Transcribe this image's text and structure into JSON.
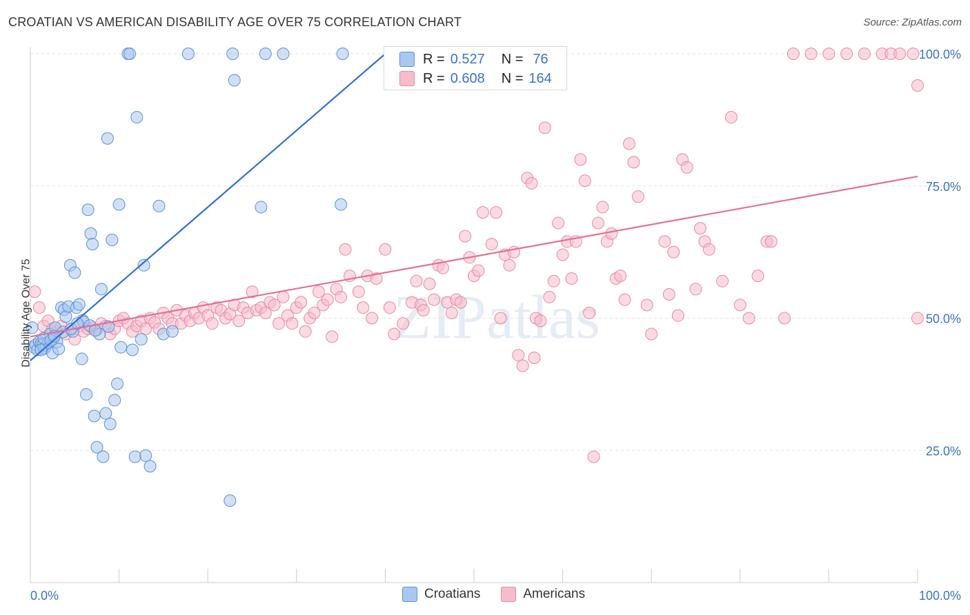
{
  "title": "CROATIAN VS AMERICAN DISABILITY AGE OVER 75 CORRELATION CHART",
  "source": "Source: ZipAtlas.com",
  "watermark": "ZIPatlas",
  "legend": {
    "r_label": "R =",
    "n_label": "N =",
    "rows": [
      {
        "r": "0.527",
        "n": "76",
        "color": "#a9c8ef",
        "border": "#5b8fd6"
      },
      {
        "r": "0.608",
        "n": "164",
        "color": "#f7bccb",
        "border": "#e58aa3"
      }
    ]
  },
  "bottom_legend": [
    {
      "label": "Croatians",
      "color": "#a9c8ef",
      "border": "#5b8fd6"
    },
    {
      "label": "Americans",
      "color": "#f7bccb",
      "border": "#e58aa3"
    }
  ],
  "chart_data": {
    "type": "scatter",
    "title": "CROATIAN VS AMERICAN DISABILITY AGE OVER 75 CORRELATION CHART",
    "xlabel": "",
    "ylabel": "Disability Age Over 75",
    "xlim": [
      0,
      100
    ],
    "ylim": [
      0,
      100
    ],
    "x_tick_labels": [
      "0.0%",
      "100.0%"
    ],
    "y_tick_labels": [
      "25.0%",
      "50.0%",
      "75.0%",
      "100.0%"
    ],
    "y_tick_values": [
      25,
      50,
      75,
      100
    ],
    "series": [
      {
        "name": "Croatians",
        "color": "#a9c8ef",
        "stroke": "#5b8fd6",
        "line_color": "#2f6fd0",
        "trend": {
          "x0": 0,
          "y0": 42.0,
          "x1": 40,
          "y1": 100
        },
        "points": [
          [
            0.2,
            48.2
          ],
          [
            0.4,
            44.5
          ],
          [
            0.6,
            45.0
          ],
          [
            0.8,
            44.0
          ],
          [
            1.0,
            45.5
          ],
          [
            1.2,
            45.2
          ],
          [
            1.4,
            45.0
          ],
          [
            1.6,
            44.3
          ],
          [
            1.8,
            44.8
          ],
          [
            2.0,
            45.4
          ],
          [
            2.2,
            47.0
          ],
          [
            2.5,
            43.4
          ],
          [
            2.6,
            46.0
          ],
          [
            2.8,
            48.2
          ],
          [
            3.0,
            45.5
          ],
          [
            3.2,
            44.2
          ],
          [
            3.5,
            52.0
          ],
          [
            3.8,
            51.6
          ],
          [
            4.0,
            50.3
          ],
          [
            4.3,
            52.2
          ],
          [
            4.5,
            60.0
          ],
          [
            4.8,
            47.5
          ],
          [
            5.0,
            58.6
          ],
          [
            5.2,
            52.0
          ],
          [
            5.5,
            52.6
          ],
          [
            5.8,
            42.3
          ],
          [
            5.9,
            49.6
          ],
          [
            6.0,
            49.3
          ],
          [
            6.3,
            35.6
          ],
          [
            6.5,
            70.5
          ],
          [
            6.8,
            66.0
          ],
          [
            7.0,
            64.0
          ],
          [
            7.2,
            31.5
          ],
          [
            7.5,
            25.6
          ],
          [
            7.8,
            47.0
          ],
          [
            8.0,
            55.5
          ],
          [
            8.2,
            23.8
          ],
          [
            8.5,
            32.0
          ],
          [
            8.7,
            84.0
          ],
          [
            9.0,
            30.0
          ],
          [
            9.2,
            64.8
          ],
          [
            9.5,
            34.5
          ],
          [
            9.8,
            37.6
          ],
          [
            10.0,
            71.5
          ],
          [
            10.2,
            44.5
          ],
          [
            11.0,
            100
          ],
          [
            11.2,
            100
          ],
          [
            11.5,
            44.0
          ],
          [
            11.8,
            23.8
          ],
          [
            12.0,
            88.0
          ],
          [
            12.5,
            46.0
          ],
          [
            12.8,
            60.0
          ],
          [
            13.0,
            24.0
          ],
          [
            13.5,
            22.0
          ],
          [
            14.5,
            71.2
          ],
          [
            15.0,
            47.0
          ],
          [
            16.0,
            47.5
          ],
          [
            17.8,
            100
          ],
          [
            22.5,
            15.5
          ],
          [
            23.0,
            95.0
          ],
          [
            22.8,
            100
          ],
          [
            26.0,
            71.0
          ],
          [
            26.5,
            100
          ],
          [
            28.5,
            100
          ],
          [
            35.0,
            71.5
          ],
          [
            35.2,
            100
          ],
          [
            1.5,
            46.2
          ],
          [
            2.3,
            45.8
          ],
          [
            3.7,
            47.4
          ],
          [
            4.6,
            48.0
          ],
          [
            5.3,
            49.0
          ],
          [
            6.7,
            48.6
          ],
          [
            7.3,
            47.7
          ],
          [
            8.8,
            48.4
          ],
          [
            1.2,
            44.0
          ],
          [
            2.7,
            46.6
          ]
        ]
      },
      {
        "name": "Americans",
        "color": "#f7bccb",
        "stroke": "#e58aa3",
        "line_color": "#e26f97",
        "trend": {
          "x0": 0,
          "y0": 46.5,
          "x1": 100,
          "y1": 76.8
        },
        "points": [
          [
            0.5,
            55.0
          ],
          [
            1.0,
            52.0
          ],
          [
            1.5,
            48.5
          ],
          [
            2.0,
            49.5
          ],
          [
            2.5,
            48.0
          ],
          [
            3.0,
            47.5
          ],
          [
            3.5,
            48.5
          ],
          [
            4.0,
            47.0
          ],
          [
            4.5,
            47.8
          ],
          [
            5.0,
            46.0
          ],
          [
            5.5,
            48.5
          ],
          [
            6.0,
            47.5
          ],
          [
            6.5,
            48.0
          ],
          [
            7.0,
            48.2
          ],
          [
            7.5,
            47.8
          ],
          [
            8.0,
            49.0
          ],
          [
            8.5,
            48.5
          ],
          [
            9.0,
            47.0
          ],
          [
            9.5,
            48.0
          ],
          [
            10.0,
            49.5
          ],
          [
            10.5,
            50.0
          ],
          [
            11.0,
            49.0
          ],
          [
            11.5,
            47.5
          ],
          [
            12.0,
            48.5
          ],
          [
            12.5,
            49.5
          ],
          [
            13.0,
            48.0
          ],
          [
            13.5,
            50.0
          ],
          [
            14.0,
            49.2
          ],
          [
            14.5,
            48.0
          ],
          [
            15.0,
            51.0
          ],
          [
            15.5,
            50.0
          ],
          [
            16.0,
            49.0
          ],
          [
            16.5,
            51.5
          ],
          [
            17.0,
            49.0
          ],
          [
            17.5,
            50.5
          ],
          [
            18.0,
            49.5
          ],
          [
            18.5,
            51.0
          ],
          [
            19.0,
            50.0
          ],
          [
            19.5,
            52.0
          ],
          [
            20.0,
            50.5
          ],
          [
            20.5,
            49.0
          ],
          [
            21.0,
            52.0
          ],
          [
            21.5,
            51.5
          ],
          [
            22.0,
            50.0
          ],
          [
            22.5,
            50.8
          ],
          [
            23.0,
            52.5
          ],
          [
            23.5,
            49.5
          ],
          [
            24.0,
            52.0
          ],
          [
            24.5,
            51.0
          ],
          [
            25.0,
            55.0
          ],
          [
            25.5,
            51.5
          ],
          [
            26.0,
            52.0
          ],
          [
            26.5,
            51.0
          ],
          [
            27.0,
            53.0
          ],
          [
            27.5,
            52.5
          ],
          [
            28.0,
            49.0
          ],
          [
            28.5,
            54.0
          ],
          [
            29.0,
            50.5
          ],
          [
            29.5,
            49.0
          ],
          [
            30.0,
            52.0
          ],
          [
            30.5,
            53.0
          ],
          [
            31.0,
            47.5
          ],
          [
            31.5,
            50.0
          ],
          [
            32.0,
            51.0
          ],
          [
            32.5,
            55.0
          ],
          [
            33.0,
            52.5
          ],
          [
            33.5,
            53.5
          ],
          [
            34.0,
            46.5
          ],
          [
            34.5,
            55.5
          ],
          [
            35.0,
            54.0
          ],
          [
            36.0,
            58.0
          ],
          [
            37.0,
            55.0
          ],
          [
            37.5,
            52.0
          ],
          [
            38.0,
            58.0
          ],
          [
            38.5,
            50.0
          ],
          [
            39.0,
            57.5
          ],
          [
            40.0,
            63.0
          ],
          [
            40.5,
            52.0
          ],
          [
            41.0,
            47.0
          ],
          [
            42.0,
            49.0
          ],
          [
            43.0,
            53.0
          ],
          [
            43.5,
            57.0
          ],
          [
            44.0,
            52.5
          ],
          [
            45.0,
            56.5
          ],
          [
            45.5,
            53.5
          ],
          [
            46.0,
            60.0
          ],
          [
            46.5,
            59.5
          ],
          [
            47.0,
            53.0
          ],
          [
            47.5,
            51.0
          ],
          [
            48.0,
            53.5
          ],
          [
            48.5,
            53.0
          ],
          [
            49.0,
            65.5
          ],
          [
            49.5,
            61.5
          ],
          [
            50.0,
            58.0
          ],
          [
            50.5,
            59.0
          ],
          [
            51.0,
            70.0
          ],
          [
            52.0,
            64.0
          ],
          [
            52.5,
            70.0
          ],
          [
            53.0,
            50.0
          ],
          [
            53.5,
            62.0
          ],
          [
            54.0,
            60.0
          ],
          [
            54.5,
            62.5
          ],
          [
            55.0,
            43.0
          ],
          [
            55.5,
            41.0
          ],
          [
            56.0,
            76.5
          ],
          [
            56.5,
            75.5
          ],
          [
            57.0,
            50.0
          ],
          [
            57.5,
            49.5
          ],
          [
            58.0,
            86.0
          ],
          [
            58.5,
            54.0
          ],
          [
            59.0,
            57.0
          ],
          [
            59.5,
            68.0
          ],
          [
            60.0,
            62.0
          ],
          [
            60.5,
            64.5
          ],
          [
            61.0,
            57.5
          ],
          [
            61.5,
            64.5
          ],
          [
            62.0,
            80.0
          ],
          [
            62.5,
            76.0
          ],
          [
            63.0,
            51.0
          ],
          [
            63.5,
            23.8
          ],
          [
            64.0,
            68.0
          ],
          [
            64.5,
            71.0
          ],
          [
            65.0,
            64.5
          ],
          [
            65.5,
            66.0
          ],
          [
            66.0,
            57.5
          ],
          [
            66.5,
            58.0
          ],
          [
            67.0,
            53.5
          ],
          [
            67.5,
            83.0
          ],
          [
            68.0,
            79.5
          ],
          [
            68.5,
            73.0
          ],
          [
            69.5,
            52.5
          ],
          [
            70.0,
            47.0
          ],
          [
            71.5,
            64.5
          ],
          [
            72.0,
            54.5
          ],
          [
            72.5,
            62.5
          ],
          [
            73.0,
            50.5
          ],
          [
            73.5,
            80.0
          ],
          [
            74.0,
            78.5
          ],
          [
            75.0,
            55.5
          ],
          [
            75.5,
            67.0
          ],
          [
            76.0,
            64.5
          ],
          [
            76.5,
            63.0
          ],
          [
            78.0,
            57.0
          ],
          [
            79.0,
            88.0
          ],
          [
            80.0,
            52.5
          ],
          [
            81.0,
            50.0
          ],
          [
            82.0,
            58.0
          ],
          [
            83.0,
            64.5
          ],
          [
            83.5,
            64.5
          ],
          [
            85.0,
            50.0
          ],
          [
            86.0,
            100
          ],
          [
            88.0,
            100
          ],
          [
            90.0,
            100
          ],
          [
            92.0,
            100
          ],
          [
            94.0,
            100
          ],
          [
            96.0,
            100
          ],
          [
            97.0,
            100
          ],
          [
            98.0,
            100
          ],
          [
            99.5,
            100
          ],
          [
            100,
            94.0
          ],
          [
            100,
            50.0
          ],
          [
            35.5,
            63.0
          ],
          [
            56.8,
            42.5
          ],
          [
            44.3,
            51.5
          ]
        ]
      }
    ]
  }
}
